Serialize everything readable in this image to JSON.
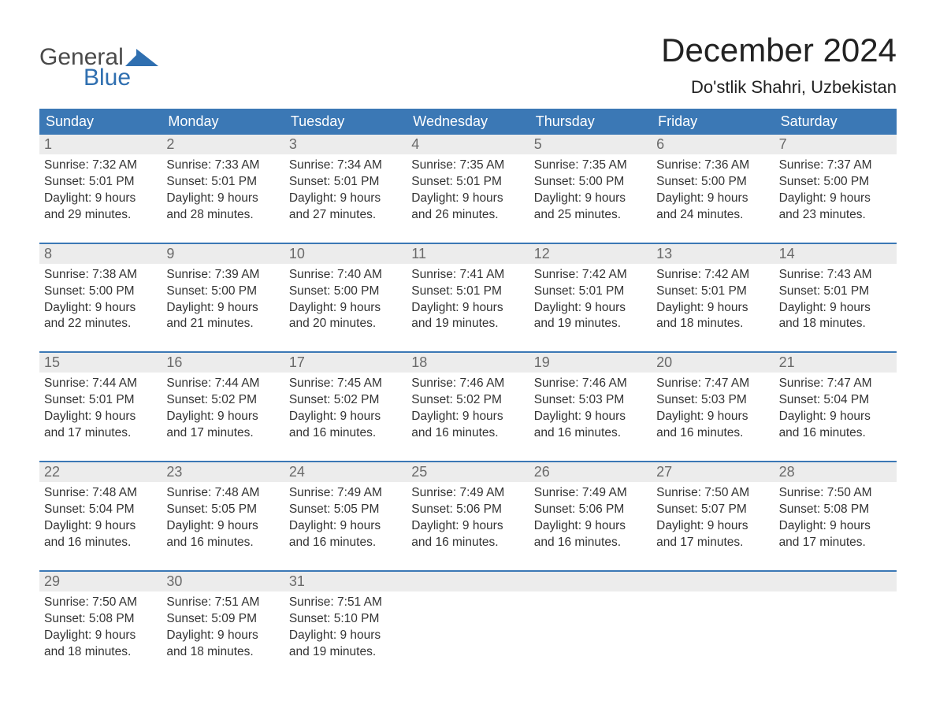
{
  "logo": {
    "top": "General",
    "bottom": "Blue",
    "icon_color": "#2f6fb0",
    "text_gray": "#4a4a4a"
  },
  "title": "December 2024",
  "location": "Do'stlik Shahri, Uzbekistan",
  "colors": {
    "header_bg": "#3b78b5",
    "header_text": "#ffffff",
    "daynum_bg": "#ececec",
    "daynum_text": "#6a6a6a",
    "body_text": "#333333",
    "separator": "#3b78b5",
    "page_bg": "#ffffff"
  },
  "fonts": {
    "title_size": 42,
    "location_size": 22,
    "weekday_size": 18,
    "daynum_size": 18,
    "cell_size": 15.5,
    "logo_size": 30
  },
  "weekdays": [
    "Sunday",
    "Monday",
    "Tuesday",
    "Wednesday",
    "Thursday",
    "Friday",
    "Saturday"
  ],
  "weeks": [
    [
      {
        "n": "1",
        "sr": "7:32 AM",
        "ss": "5:01 PM",
        "dl": "9 hours and 29 minutes."
      },
      {
        "n": "2",
        "sr": "7:33 AM",
        "ss": "5:01 PM",
        "dl": "9 hours and 28 minutes."
      },
      {
        "n": "3",
        "sr": "7:34 AM",
        "ss": "5:01 PM",
        "dl": "9 hours and 27 minutes."
      },
      {
        "n": "4",
        "sr": "7:35 AM",
        "ss": "5:01 PM",
        "dl": "9 hours and 26 minutes."
      },
      {
        "n": "5",
        "sr": "7:35 AM",
        "ss": "5:00 PM",
        "dl": "9 hours and 25 minutes."
      },
      {
        "n": "6",
        "sr": "7:36 AM",
        "ss": "5:00 PM",
        "dl": "9 hours and 24 minutes."
      },
      {
        "n": "7",
        "sr": "7:37 AM",
        "ss": "5:00 PM",
        "dl": "9 hours and 23 minutes."
      }
    ],
    [
      {
        "n": "8",
        "sr": "7:38 AM",
        "ss": "5:00 PM",
        "dl": "9 hours and 22 minutes."
      },
      {
        "n": "9",
        "sr": "7:39 AM",
        "ss": "5:00 PM",
        "dl": "9 hours and 21 minutes."
      },
      {
        "n": "10",
        "sr": "7:40 AM",
        "ss": "5:00 PM",
        "dl": "9 hours and 20 minutes."
      },
      {
        "n": "11",
        "sr": "7:41 AM",
        "ss": "5:01 PM",
        "dl": "9 hours and 19 minutes."
      },
      {
        "n": "12",
        "sr": "7:42 AM",
        "ss": "5:01 PM",
        "dl": "9 hours and 19 minutes."
      },
      {
        "n": "13",
        "sr": "7:42 AM",
        "ss": "5:01 PM",
        "dl": "9 hours and 18 minutes."
      },
      {
        "n": "14",
        "sr": "7:43 AM",
        "ss": "5:01 PM",
        "dl": "9 hours and 18 minutes."
      }
    ],
    [
      {
        "n": "15",
        "sr": "7:44 AM",
        "ss": "5:01 PM",
        "dl": "9 hours and 17 minutes."
      },
      {
        "n": "16",
        "sr": "7:44 AM",
        "ss": "5:02 PM",
        "dl": "9 hours and 17 minutes."
      },
      {
        "n": "17",
        "sr": "7:45 AM",
        "ss": "5:02 PM",
        "dl": "9 hours and 16 minutes."
      },
      {
        "n": "18",
        "sr": "7:46 AM",
        "ss": "5:02 PM",
        "dl": "9 hours and 16 minutes."
      },
      {
        "n": "19",
        "sr": "7:46 AM",
        "ss": "5:03 PM",
        "dl": "9 hours and 16 minutes."
      },
      {
        "n": "20",
        "sr": "7:47 AM",
        "ss": "5:03 PM",
        "dl": "9 hours and 16 minutes."
      },
      {
        "n": "21",
        "sr": "7:47 AM",
        "ss": "5:04 PM",
        "dl": "9 hours and 16 minutes."
      }
    ],
    [
      {
        "n": "22",
        "sr": "7:48 AM",
        "ss": "5:04 PM",
        "dl": "9 hours and 16 minutes."
      },
      {
        "n": "23",
        "sr": "7:48 AM",
        "ss": "5:05 PM",
        "dl": "9 hours and 16 minutes."
      },
      {
        "n": "24",
        "sr": "7:49 AM",
        "ss": "5:05 PM",
        "dl": "9 hours and 16 minutes."
      },
      {
        "n": "25",
        "sr": "7:49 AM",
        "ss": "5:06 PM",
        "dl": "9 hours and 16 minutes."
      },
      {
        "n": "26",
        "sr": "7:49 AM",
        "ss": "5:06 PM",
        "dl": "9 hours and 16 minutes."
      },
      {
        "n": "27",
        "sr": "7:50 AM",
        "ss": "5:07 PM",
        "dl": "9 hours and 17 minutes."
      },
      {
        "n": "28",
        "sr": "7:50 AM",
        "ss": "5:08 PM",
        "dl": "9 hours and 17 minutes."
      }
    ],
    [
      {
        "n": "29",
        "sr": "7:50 AM",
        "ss": "5:08 PM",
        "dl": "9 hours and 18 minutes."
      },
      {
        "n": "30",
        "sr": "7:51 AM",
        "ss": "5:09 PM",
        "dl": "9 hours and 18 minutes."
      },
      {
        "n": "31",
        "sr": "7:51 AM",
        "ss": "5:10 PM",
        "dl": "9 hours and 19 minutes."
      },
      null,
      null,
      null,
      null
    ]
  ],
  "labels": {
    "sunrise": "Sunrise:",
    "sunset": "Sunset:",
    "daylight": "Daylight:"
  }
}
